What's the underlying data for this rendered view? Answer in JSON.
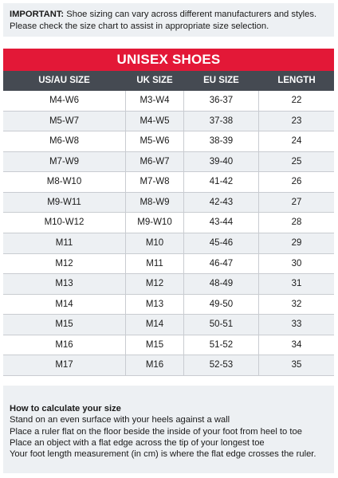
{
  "notice": {
    "label": "IMPORTANT:",
    "text": " Shoe sizing can vary across different manufacturers and styles. Please check the size chart to assist in appropriate size selection."
  },
  "chart_data": {
    "type": "table",
    "title": "UNISEX SHOES",
    "columns": [
      "US/AU SIZE",
      "UK SIZE",
      "EU SIZE",
      "LENGTH"
    ],
    "rows": [
      [
        "M4-W6",
        "M3-W4",
        "36-37",
        "22"
      ],
      [
        "M5-W7",
        "M4-W5",
        "37-38",
        "23"
      ],
      [
        "M6-W8",
        "M5-W6",
        "38-39",
        "24"
      ],
      [
        "M7-W9",
        "M6-W7",
        "39-40",
        "25"
      ],
      [
        "M8-W10",
        "M7-W8",
        "41-42",
        "26"
      ],
      [
        "M9-W11",
        "M8-W9",
        "42-43",
        "27"
      ],
      [
        "M10-W12",
        "M9-W10",
        "43-44",
        "28"
      ],
      [
        "M11",
        "M10",
        "45-46",
        "29"
      ],
      [
        "M12",
        "M11",
        "46-47",
        "30"
      ],
      [
        "M13",
        "M12",
        "48-49",
        "31"
      ],
      [
        "M14",
        "M13",
        "49-50",
        "32"
      ],
      [
        "M15",
        "M14",
        "50-51",
        "33"
      ],
      [
        "M16",
        "M15",
        "51-52",
        "34"
      ],
      [
        "M17",
        "M16",
        "52-53",
        "35"
      ]
    ]
  },
  "colors": {
    "accent": "#e31837",
    "header": "#454a52",
    "panel": "#edf0f3"
  },
  "howto": {
    "title": "How to calculate your size",
    "steps": [
      "Stand on an even surface with your heels against a wall",
      "Place a ruler flat on the floor beside the inside of your foot from heel to toe",
      "Place an object with a flat edge across the tip of your longest toe",
      "Your foot length measurement (in cm) is where the flat edge crosses the ruler."
    ]
  }
}
